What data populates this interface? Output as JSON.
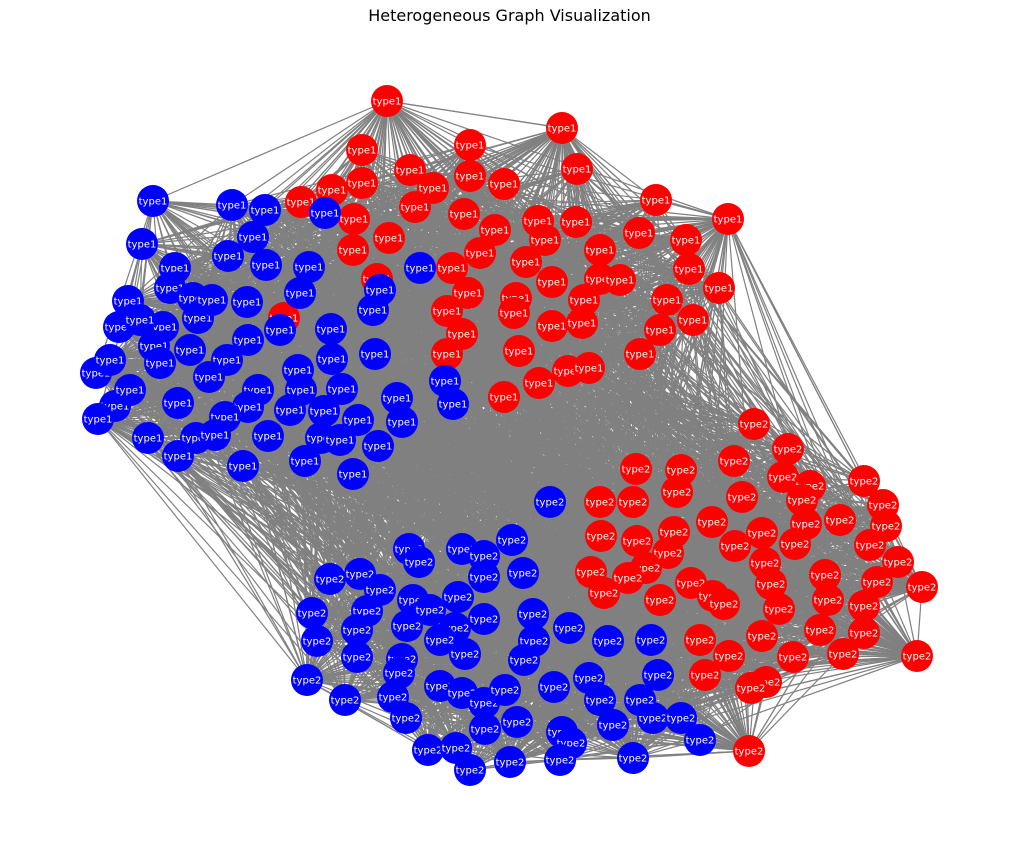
{
  "title": "Heterogeneous Graph Visualization",
  "colors": {
    "red": "#ff0000",
    "blue": "#0000ff",
    "edge": "#808080",
    "label": "#ffffff"
  },
  "node_types": [
    "type1",
    "type2"
  ],
  "groups": {
    "type1": {
      "label": "type1",
      "red_count": 54,
      "blue_count": 63
    },
    "type2": {
      "label": "type2",
      "red_count": 55,
      "blue_count": 59
    }
  }
}
